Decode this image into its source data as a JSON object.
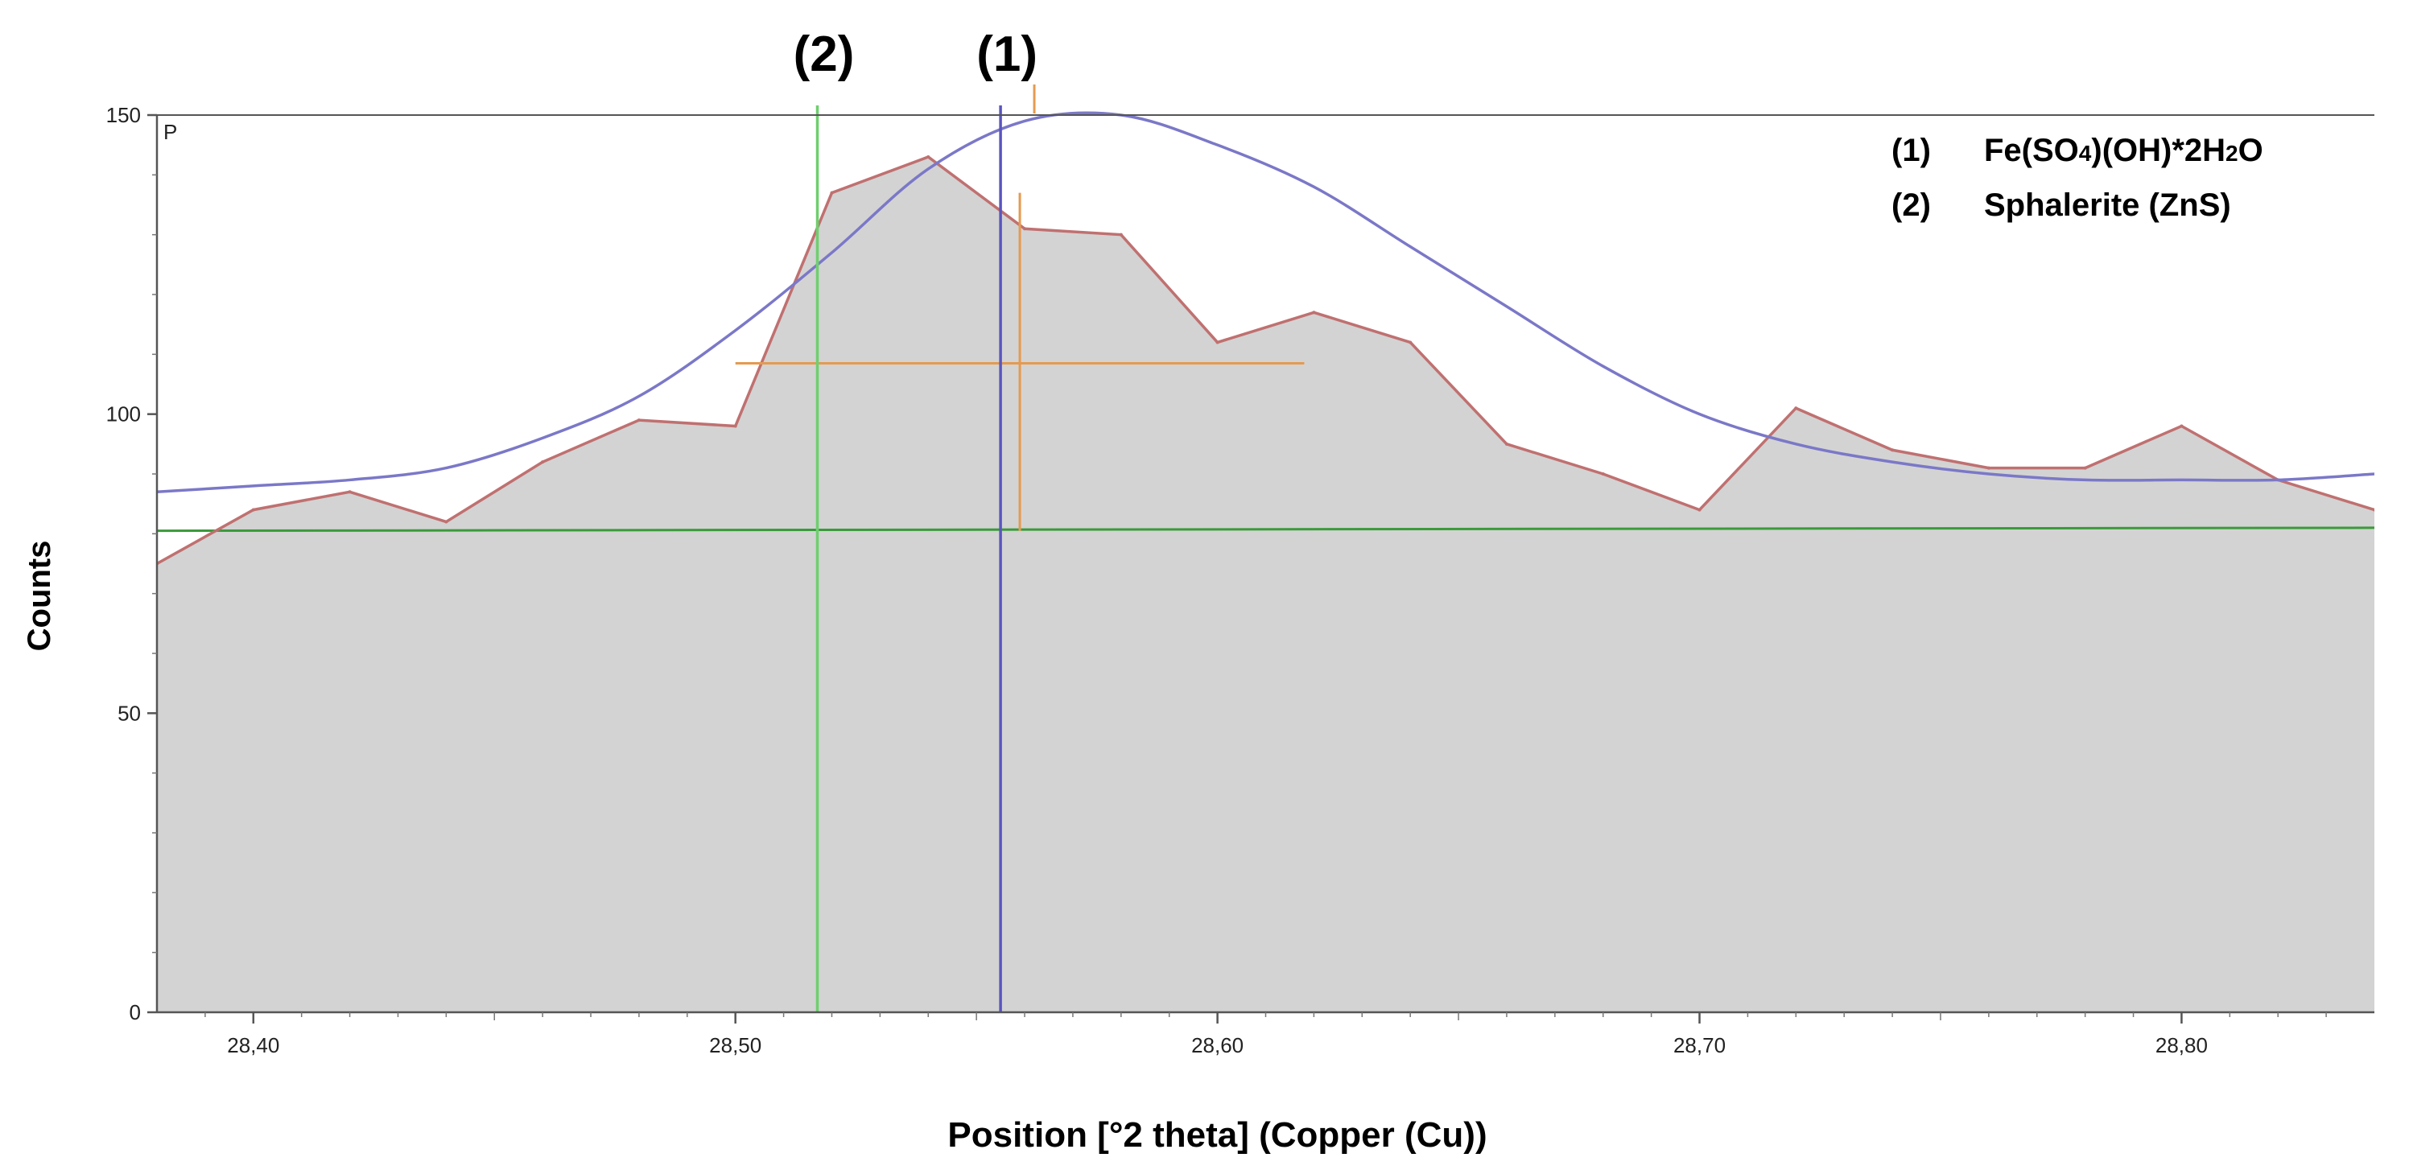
{
  "chart_data": {
    "type": "line",
    "title": "",
    "xlabel": "Position [°2 theta] (Copper (Cu))",
    "ylabel": "Counts",
    "xlim": [
      28.38,
      28.84
    ],
    "ylim": [
      0,
      150
    ],
    "x_ticks": [
      28.4,
      28.5,
      28.6,
      28.7,
      28.8
    ],
    "x_tick_labels": [
      "28,40",
      "28,50",
      "28,60",
      "28,70",
      "28,80"
    ],
    "y_ticks": [
      0,
      50,
      100,
      150
    ],
    "y_tick_labels": [
      "0",
      "50",
      "100",
      "150"
    ],
    "corner_label": "P",
    "grid": false,
    "legend_position": "top-right",
    "legend": [
      {
        "label": "(1)",
        "name_parts": [
          [
            "Fe(SO",
            ""
          ],
          [
            "4",
            "sub"
          ],
          [
            ")(OH)*2H",
            ""
          ],
          [
            "2",
            "sub"
          ],
          [
            "O",
            ""
          ]
        ]
      },
      {
        "label": "(2)",
        "name_parts": [
          [
            "Sphalerite (ZnS)",
            ""
          ]
        ]
      }
    ],
    "series": [
      {
        "role": "observed",
        "color": "#c07070",
        "fill": "#d3d3d3",
        "x": [
          28.38,
          28.4,
          28.42,
          28.44,
          28.46,
          28.48,
          28.5,
          28.52,
          28.54,
          28.56,
          28.58,
          28.6,
          28.62,
          28.64,
          28.66,
          28.68,
          28.7,
          28.72,
          28.74,
          28.76,
          28.78,
          28.8,
          28.82,
          28.84
        ],
        "y": [
          75,
          84,
          87,
          82,
          92,
          99,
          98,
          137,
          143,
          131,
          130,
          112,
          117,
          112,
          95,
          90,
          84,
          101,
          94,
          91,
          91,
          98,
          89,
          84
        ]
      },
      {
        "role": "calculated-profile",
        "color": "#7b78c8",
        "x": [
          28.38,
          28.4,
          28.42,
          28.44,
          28.46,
          28.48,
          28.5,
          28.52,
          28.54,
          28.56,
          28.58,
          28.6,
          28.62,
          28.64,
          28.66,
          28.68,
          28.7,
          28.72,
          28.74,
          28.76,
          28.78,
          28.8,
          28.82,
          28.84
        ],
        "y": [
          87,
          88,
          89,
          91,
          96,
          103,
          114,
          127,
          141,
          149,
          150,
          145,
          138,
          128,
          118,
          108,
          100,
          95,
          92,
          90,
          89,
          89,
          89,
          90
        ]
      },
      {
        "role": "background",
        "color": "#3a9a3a",
        "x": [
          28.38,
          28.84
        ],
        "y": [
          80.5,
          81
        ]
      }
    ],
    "markers": [
      {
        "label": "(2)",
        "x": 28.517,
        "color": "#6fcf6f"
      },
      {
        "label": "(1)",
        "x": 28.555,
        "color": "#5a55c0"
      }
    ],
    "peak_fit": {
      "color": "#e59a50",
      "center_x": 28.559,
      "x_range": [
        28.5,
        28.618
      ],
      "y_level": 108.5,
      "y_range": [
        80.5,
        137
      ]
    }
  }
}
